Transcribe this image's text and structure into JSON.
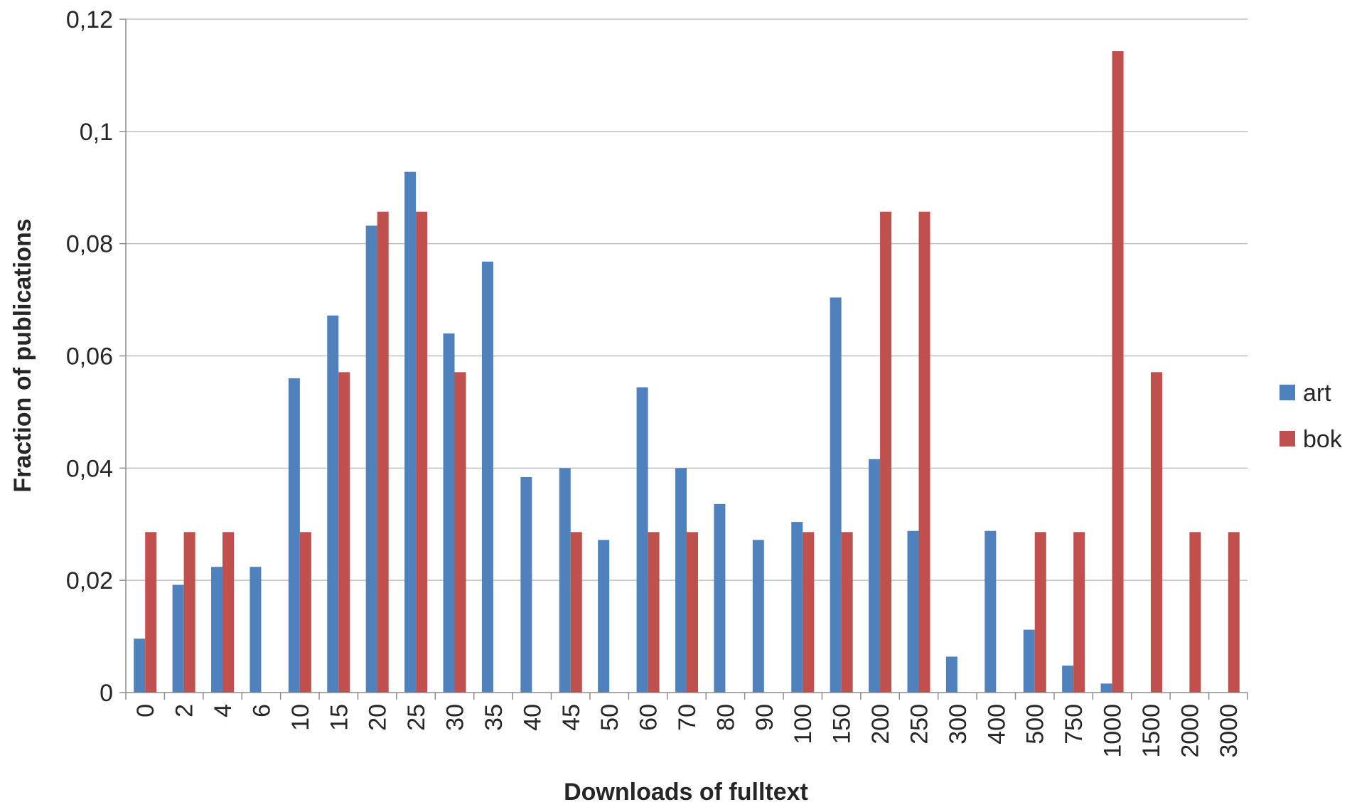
{
  "chart_data": {
    "type": "bar",
    "title": "",
    "xlabel": "Downloads of fulltext",
    "ylabel": "Fraction of publications",
    "ylim": [
      0,
      0.12
    ],
    "yticks": [
      "0",
      "0,02",
      "0,04",
      "0,06",
      "0,08",
      "0,1",
      "0,12"
    ],
    "grid": true,
    "legend_position": "right",
    "categories": [
      "0",
      "2",
      "4",
      "6",
      "10",
      "15",
      "20",
      "25",
      "30",
      "35",
      "40",
      "45",
      "50",
      "60",
      "70",
      "80",
      "90",
      "100",
      "150",
      "200",
      "250",
      "300",
      "400",
      "500",
      "750",
      "1000",
      "1500",
      "2000",
      "3000"
    ],
    "series": [
      {
        "name": "art",
        "color": "#4f81bd",
        "values": [
          0.0096,
          0.0192,
          0.0224,
          0.0224,
          0.056,
          0.0672,
          0.0832,
          0.0928,
          0.064,
          0.0768,
          0.0384,
          0.04,
          0.0272,
          0.0544,
          0.04,
          0.0336,
          0.0272,
          0.0304,
          0.0704,
          0.0416,
          0.0288,
          0.0064,
          0.0288,
          0.0112,
          0.0048,
          0.0016,
          0,
          0,
          0
        ]
      },
      {
        "name": "bok",
        "color": "#c0504d",
        "values": [
          0.0286,
          0.0286,
          0.0286,
          0,
          0.0286,
          0.0571,
          0.0857,
          0.0857,
          0.0571,
          0,
          0,
          0.0286,
          0,
          0.0286,
          0.0286,
          0,
          0,
          0.0286,
          0.0286,
          0.0857,
          0.0857,
          0,
          0,
          0.0286,
          0.0286,
          0.1143,
          0.0571,
          0.0286,
          0.0286
        ]
      }
    ]
  }
}
